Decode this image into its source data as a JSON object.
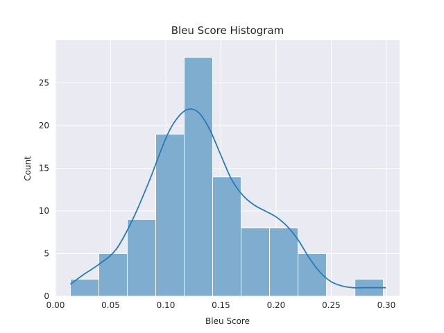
{
  "chart_data": {
    "type": "bar",
    "title": "Bleu Score Histogram",
    "xlabel": "Bleu Score",
    "ylabel": "Count",
    "xlim": [
      0.0,
      0.312
    ],
    "ylim": [
      0,
      30
    ],
    "x_ticks": [
      0.0,
      0.05,
      0.1,
      0.15,
      0.2,
      0.25,
      0.3
    ],
    "x_tick_labels": [
      "0.00",
      "0.05",
      "0.10",
      "0.15",
      "0.20",
      "0.25",
      "0.30"
    ],
    "y_ticks": [
      0,
      5,
      10,
      15,
      20,
      25
    ],
    "y_tick_labels": [
      "0",
      "5",
      "10",
      "15",
      "20",
      "25"
    ],
    "grid": true,
    "bins": [
      {
        "x0": 0.0135,
        "x1": 0.0393,
        "count": 2
      },
      {
        "x0": 0.0393,
        "x1": 0.0651,
        "count": 5
      },
      {
        "x0": 0.0651,
        "x1": 0.0909,
        "count": 9
      },
      {
        "x0": 0.0909,
        "x1": 0.1167,
        "count": 19
      },
      {
        "x0": 0.1167,
        "x1": 0.1425,
        "count": 28
      },
      {
        "x0": 0.1425,
        "x1": 0.1683,
        "count": 14
      },
      {
        "x0": 0.1683,
        "x1": 0.1941,
        "count": 8
      },
      {
        "x0": 0.1941,
        "x1": 0.2199,
        "count": 8
      },
      {
        "x0": 0.2199,
        "x1": 0.2457,
        "count": 5
      },
      {
        "x0": 0.2457,
        "x1": 0.2715,
        "count": 0
      },
      {
        "x0": 0.2715,
        "x1": 0.2973,
        "count": 2
      }
    ],
    "kde": {
      "x": [
        0.0135,
        0.025,
        0.04,
        0.055,
        0.07,
        0.085,
        0.1,
        0.11,
        0.12,
        0.13,
        0.14,
        0.15,
        0.16,
        0.17,
        0.18,
        0.19,
        0.2,
        0.21,
        0.22,
        0.23,
        0.24,
        0.25,
        0.26,
        0.27,
        0.28,
        0.29,
        0.2995
      ],
      "y": [
        1.4,
        2.5,
        3.8,
        5.5,
        9.0,
        13.5,
        18.5,
        20.8,
        21.9,
        21.5,
        19.5,
        16.5,
        13.6,
        11.8,
        10.7,
        10.0,
        9.3,
        8.2,
        6.6,
        4.5,
        2.8,
        1.7,
        1.2,
        1.0,
        1.0,
        1.0,
        1.0
      ]
    },
    "colors": {
      "bar_fill": "#7fadd0",
      "bar_edge": "#ffffff",
      "kde_line": "#2a7ab8",
      "plot_bg": "#eaeaf2",
      "grid": "#ffffff"
    }
  }
}
